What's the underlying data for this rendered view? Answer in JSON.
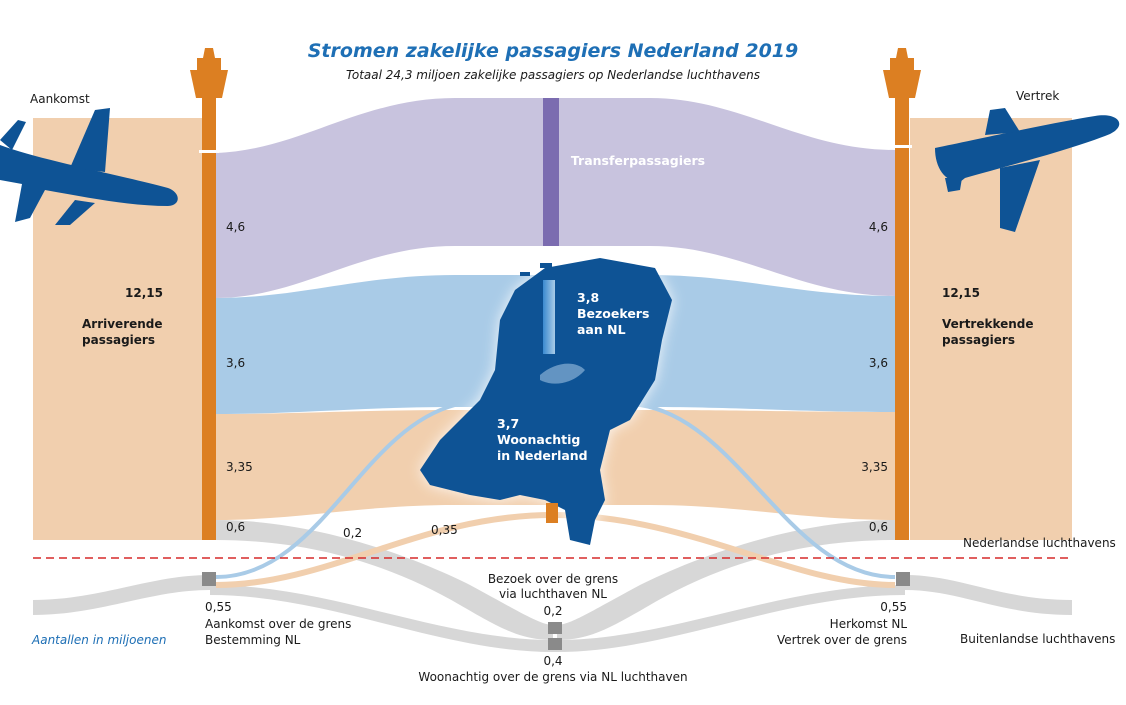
{
  "title": "Stromen zakelijke passagiers Nederland 2019",
  "subtitle": "Totaal 24,3 miljoen zakelijke passagiers op Nederlandse luchthavens",
  "left": {
    "heading": "Aankomst",
    "total": "12,15",
    "label_line1": "Arriverende",
    "label_line2": "passagiers"
  },
  "right": {
    "heading": "Vertrek",
    "total": "12,15",
    "label_line1": "Vertrekkende",
    "label_line2": "passagiers"
  },
  "flows": {
    "transfer_label": "Transferpassagiers",
    "left_values": [
      "4,6",
      "3,6",
      "3,35",
      "0,6"
    ],
    "right_values": [
      "4,6",
      "3,6",
      "3,35",
      "0,6"
    ],
    "visitors_value": "3,8",
    "visitors_line1": "Bezoekers",
    "visitors_line2": "aan NL",
    "residents_value": "3,7",
    "residents_line1": "Woonachtig",
    "residents_line2": "in Nederland",
    "cross_left": "0,2",
    "cross_mid": "0,35"
  },
  "lower": {
    "nl_airports": "Nederlandse luchthavens",
    "foreign_airports": "Buitenlandse luchthavens",
    "unit_note": "Aantallen in miljoenen",
    "left_value": "0,55",
    "left_line1": "Aankomst over de grens",
    "left_line2": "Bestemming NL",
    "right_value": "0,55",
    "right_line1": "Herkomst NL",
    "right_line2": "Vertrek over de grens",
    "center_line1": "Bezoek over de grens",
    "center_line2": "via luchthaven NL",
    "center_value": "0,2",
    "bottom_value": "0,4",
    "bottom_label": "Woonachtig over de grens via NL luchthaven"
  },
  "colors": {
    "transfer": "#c8c3de",
    "visitors": "#a9cbe7",
    "residents": "#f1cfae",
    "tower": "#dc7f22",
    "map": "#0e5395",
    "plane": "#0e5395",
    "border_line": "#d62a2a",
    "grey_flow": "#d7d7d7"
  },
  "icons": {
    "left_plane": "arriving-plane-icon",
    "right_plane": "departing-plane-icon",
    "towers": "control-tower-icon",
    "map": "netherlands-map-icon"
  }
}
